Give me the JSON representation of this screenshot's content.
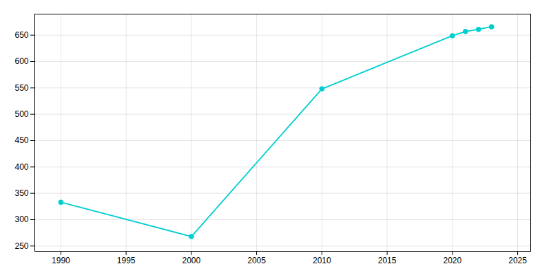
{
  "chart_data": {
    "type": "line",
    "x": [
      1990,
      2000,
      2010,
      2020,
      2021,
      2022,
      2023
    ],
    "values": [
      333,
      268,
      548,
      649,
      657,
      661,
      666
    ],
    "color": "#00CED1",
    "marker": "circle",
    "xlim": [
      1988,
      2026
    ],
    "ylim": [
      240,
      690
    ],
    "xticks": [
      1990,
      1995,
      2000,
      2005,
      2010,
      2015,
      2020,
      2025
    ],
    "yticks": [
      250,
      300,
      350,
      400,
      450,
      500,
      550,
      600,
      650
    ],
    "grid": true
  }
}
